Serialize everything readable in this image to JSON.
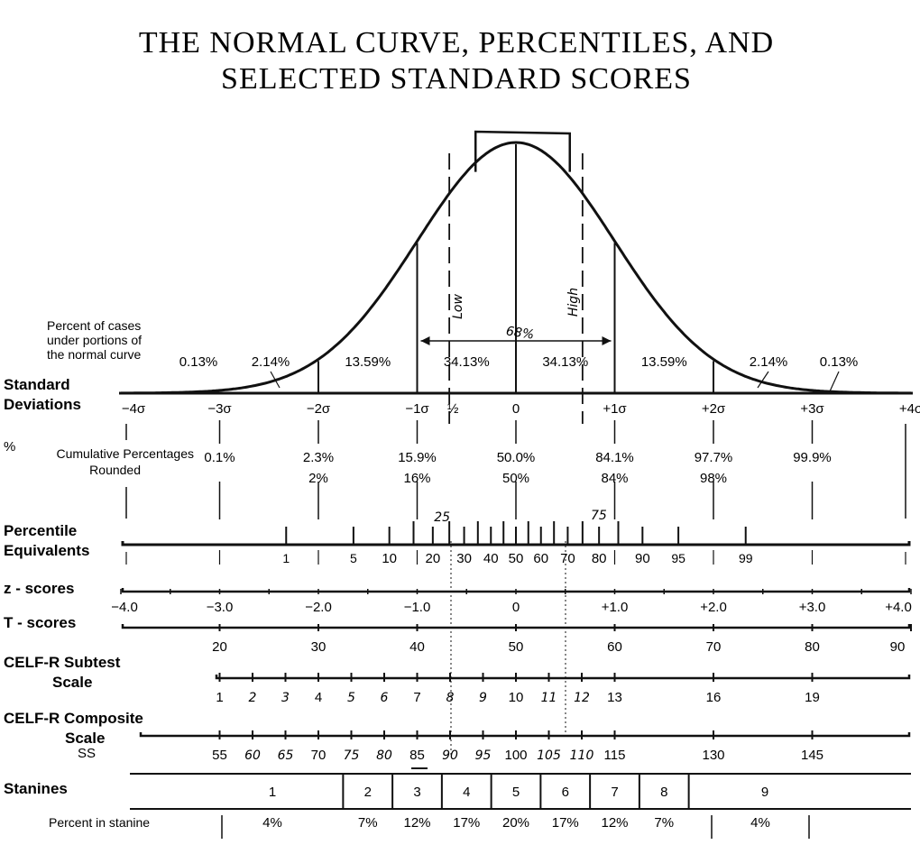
{
  "title_line1": "THE NORMAL CURVE, PERCENTILES, AND",
  "title_line2": "SELECTED STANDARD SCORES",
  "chart_data": {
    "type": "area",
    "curve": "normal",
    "xlim": [
      -4,
      4
    ],
    "areas_caption": [
      "Percent of cases",
      "under portions of",
      "the normal curve"
    ],
    "areas": [
      {
        "from": -4,
        "to": -3,
        "label": "0.13%"
      },
      {
        "from": -3,
        "to": -2,
        "label": "2.14%"
      },
      {
        "from": -2,
        "to": -1,
        "label": "13.59%"
      },
      {
        "from": -1,
        "to": 0,
        "label": "34.13%"
      },
      {
        "from": 0,
        "to": 1,
        "label": "34.13%"
      },
      {
        "from": 1,
        "to": 2,
        "label": "13.59%"
      },
      {
        "from": 2,
        "to": 3,
        "label": "2.14%"
      },
      {
        "from": 3,
        "to": 4,
        "label": "0.13%"
      }
    ],
    "annotations": {
      "low": "Low",
      "high": "High",
      "pct68": "68%",
      "half": "½",
      "p25": "25",
      "p75": "75",
      "low_z": -0.6745,
      "high_z": 0.6745,
      "box_from": -0.5,
      "box_to": 0.5
    },
    "sd_row": {
      "label": [
        "Standard",
        "Deviations"
      ],
      "ticks": [
        {
          "z": -4,
          "label": "−4σ"
        },
        {
          "z": -3,
          "label": "−3σ"
        },
        {
          "z": -2,
          "label": "−2σ"
        },
        {
          "z": -1,
          "label": "−1σ"
        },
        {
          "z": 0,
          "label": "0"
        },
        {
          "z": 1,
          "label": "+1σ"
        },
        {
          "z": 2,
          "label": "+2σ"
        },
        {
          "z": 3,
          "label": "+3σ"
        },
        {
          "z": 4,
          "label": "+4σ"
        }
      ]
    },
    "cumulative": {
      "mark": "%",
      "label": [
        "Cumulative Percentages",
        "Rounded"
      ],
      "values": [
        {
          "z": -3,
          "exact": "0.1%",
          "rounded": ""
        },
        {
          "z": -2,
          "exact": "2.3%",
          "rounded": "2%"
        },
        {
          "z": -1,
          "exact": "15.9%",
          "rounded": "16%"
        },
        {
          "z": 0,
          "exact": "50.0%",
          "rounded": "50%"
        },
        {
          "z": 1,
          "exact": "84.1%",
          "rounded": "84%"
        },
        {
          "z": 2,
          "exact": "97.7%",
          "rounded": "98%"
        },
        {
          "z": 3,
          "exact": "99.9%",
          "rounded": ""
        }
      ]
    },
    "percentiles": {
      "label": [
        "Percentile",
        "Equivalents"
      ],
      "values": [
        {
          "p": 1,
          "label": "1"
        },
        {
          "p": 5,
          "label": "5"
        },
        {
          "p": 10,
          "label": "10"
        },
        {
          "p": 20,
          "label": "20"
        },
        {
          "p": 30,
          "label": "30"
        },
        {
          "p": 40,
          "label": "40"
        },
        {
          "p": 50,
          "label": "50"
        },
        {
          "p": 60,
          "label": "60"
        },
        {
          "p": 70,
          "label": "70"
        },
        {
          "p": 80,
          "label": "80"
        },
        {
          "p": 90,
          "label": "90"
        },
        {
          "p": 95,
          "label": "95"
        },
        {
          "p": 99,
          "label": "99"
        }
      ],
      "extra_ticks": [
        15,
        25,
        35,
        45,
        55,
        65,
        75,
        85
      ]
    },
    "z_scores": {
      "label": "z - scores",
      "ticks": [
        {
          "z": -4,
          "label": "−4.0"
        },
        {
          "z": -3,
          "label": "−3.0"
        },
        {
          "z": -2,
          "label": "−2.0"
        },
        {
          "z": -1,
          "label": "−1.0"
        },
        {
          "z": 0,
          "label": "0"
        },
        {
          "z": 1,
          "label": "+1.0"
        },
        {
          "z": 2,
          "label": "+2.0"
        },
        {
          "z": 3,
          "label": "+3.0"
        },
        {
          "z": 4,
          "label": "+4.0"
        }
      ]
    },
    "t_scores": {
      "label": "T - scores",
      "ticks": [
        {
          "t": 20,
          "label": "20"
        },
        {
          "t": 30,
          "label": "30"
        },
        {
          "t": 40,
          "label": "40"
        },
        {
          "t": 50,
          "label": "50"
        },
        {
          "t": 60,
          "label": "60"
        },
        {
          "t": 70,
          "label": "70"
        },
        {
          "t": 80,
          "label": "80"
        },
        {
          "t": 90,
          "label": "90"
        }
      ]
    },
    "celf_subtest": {
      "label": [
        "CELF-R Subtest",
        "Scale"
      ],
      "ticks": [
        {
          "v": 1,
          "label": "1",
          "hand": false
        },
        {
          "v": 2,
          "label": "2",
          "hand": true
        },
        {
          "v": 3,
          "label": "3",
          "hand": true
        },
        {
          "v": 4,
          "label": "4",
          "hand": false
        },
        {
          "v": 5,
          "label": "5",
          "hand": true
        },
        {
          "v": 6,
          "label": "6",
          "hand": true
        },
        {
          "v": 7,
          "label": "7",
          "hand": false
        },
        {
          "v": 8,
          "label": "8",
          "hand": true
        },
        {
          "v": 9,
          "label": "9",
          "hand": true
        },
        {
          "v": 10,
          "label": "10",
          "hand": false
        },
        {
          "v": 11,
          "label": "11",
          "hand": true
        },
        {
          "v": 12,
          "label": "12",
          "hand": true
        },
        {
          "v": 13,
          "label": "13",
          "hand": false
        },
        {
          "v": 16,
          "label": "16",
          "hand": false
        },
        {
          "v": 19,
          "label": "19",
          "hand": false
        }
      ]
    },
    "celf_composite": {
      "label": [
        "CELF-R Composite",
        "Scale"
      ],
      "ss": "SS",
      "ticks": [
        {
          "v": 55,
          "label": "55",
          "hand": false
        },
        {
          "v": 60,
          "label": "60",
          "hand": true
        },
        {
          "v": 65,
          "label": "65",
          "hand": true
        },
        {
          "v": 70,
          "label": "70",
          "hand": false
        },
        {
          "v": 75,
          "label": "75",
          "hand": true
        },
        {
          "v": 80,
          "label": "80",
          "hand": true
        },
        {
          "v": 85,
          "label": "85",
          "hand": false
        },
        {
          "v": 90,
          "label": "90",
          "hand": true
        },
        {
          "v": 95,
          "label": "95",
          "hand": true
        },
        {
          "v": 100,
          "label": "100",
          "hand": false
        },
        {
          "v": 105,
          "label": "105",
          "hand": true
        },
        {
          "v": 110,
          "label": "110",
          "hand": true
        },
        {
          "v": 115,
          "label": "115",
          "hand": false
        },
        {
          "v": 130,
          "label": "130",
          "hand": false
        },
        {
          "v": 145,
          "label": "145",
          "hand": false
        }
      ]
    },
    "stanines": {
      "label": "Stanines",
      "percent_label": "Percent in stanine",
      "values": [
        {
          "stanine": "1",
          "from": -4,
          "to": -1.75,
          "percent": "4%"
        },
        {
          "stanine": "2",
          "from": -1.75,
          "to": -1.25,
          "percent": "7%"
        },
        {
          "stanine": "3",
          "from": -1.25,
          "to": -0.75,
          "percent": "12%"
        },
        {
          "stanine": "4",
          "from": -0.75,
          "to": -0.25,
          "percent": "17%"
        },
        {
          "stanine": "5",
          "from": -0.25,
          "to": 0.25,
          "percent": "20%"
        },
        {
          "stanine": "6",
          "from": 0.25,
          "to": 0.75,
          "percent": "17%"
        },
        {
          "stanine": "7",
          "from": 0.75,
          "to": 1.25,
          "percent": "12%"
        },
        {
          "stanine": "8",
          "from": 1.25,
          "to": 1.75,
          "percent": "7%"
        },
        {
          "stanine": "9",
          "from": 1.75,
          "to": 4,
          "percent": "4%"
        }
      ]
    }
  }
}
